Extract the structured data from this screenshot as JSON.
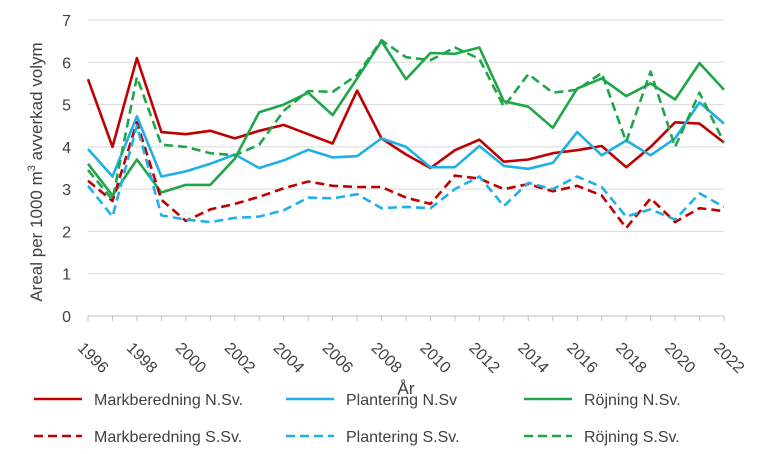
{
  "chart_data": {
    "type": "line",
    "title": "",
    "xlabel": "År",
    "ylabel_main": "Areal per 1000 m",
    "ylabel_sup": "3",
    "ylabel_rest": " avverkad volym",
    "ylim": [
      0,
      7
    ],
    "yticks": [
      0,
      1,
      2,
      3,
      4,
      5,
      6,
      7
    ],
    "xlim": [
      1996,
      2022
    ],
    "x": [
      1996,
      1997,
      1998,
      1999,
      2000,
      2001,
      2002,
      2003,
      2004,
      2005,
      2006,
      2007,
      2008,
      2009,
      2010,
      2011,
      2012,
      2013,
      2014,
      2015,
      2016,
      2017,
      2018,
      2019,
      2020,
      2021,
      2022
    ],
    "xtick_labels": [
      "1996",
      "1998",
      "2000",
      "2002",
      "2004",
      "2006",
      "2008",
      "2010",
      "2012",
      "2014",
      "2016",
      "2018",
      "2020",
      "2022"
    ],
    "legend_position": "bottom",
    "series": [
      {
        "name": "Markberedning N.Sv.",
        "color": "#C00000",
        "dash": "solid",
        "values": [
          5.6,
          4.0,
          6.1,
          4.35,
          4.3,
          4.38,
          4.2,
          4.38,
          4.52,
          4.3,
          4.08,
          5.33,
          4.2,
          3.82,
          3.5,
          3.92,
          4.17,
          3.65,
          3.7,
          3.85,
          3.92,
          4.02,
          3.52,
          4.0,
          4.58,
          4.55,
          4.1
        ]
      },
      {
        "name": "Plantering N.Sv",
        "color": "#1FB0E6",
        "dash": "solid",
        "values": [
          3.95,
          3.3,
          4.72,
          3.3,
          3.42,
          3.6,
          3.82,
          3.5,
          3.68,
          3.93,
          3.75,
          3.78,
          4.2,
          4.0,
          3.52,
          3.52,
          4.02,
          3.55,
          3.48,
          3.62,
          4.35,
          3.8,
          4.15,
          3.8,
          4.2,
          5.05,
          4.55
        ]
      },
      {
        "name": "Röjning N.Sv.",
        "color": "#1FA64A",
        "dash": "solid",
        "values": [
          3.6,
          2.85,
          3.7,
          2.92,
          3.1,
          3.1,
          3.72,
          4.82,
          5.0,
          5.28,
          4.75,
          5.62,
          6.5,
          5.6,
          6.22,
          6.2,
          6.35,
          5.08,
          4.95,
          4.45,
          5.38,
          5.62,
          5.2,
          5.5,
          5.12,
          5.98,
          5.35
        ]
      },
      {
        "name": "Markberedning S.Sv.",
        "color": "#C00000",
        "dash": "dashed",
        "values": [
          3.2,
          2.72,
          4.58,
          2.75,
          2.25,
          2.52,
          2.65,
          2.82,
          3.02,
          3.18,
          3.08,
          3.05,
          3.05,
          2.8,
          2.65,
          3.32,
          3.25,
          3.0,
          3.12,
          2.95,
          3.08,
          2.85,
          2.08,
          2.78,
          2.22,
          2.55,
          2.48
        ]
      },
      {
        "name": "Plantering S.Sv.",
        "color": "#1FB0E6",
        "dash": "dashed",
        "values": [
          3.08,
          2.35,
          4.5,
          2.38,
          2.28,
          2.22,
          2.32,
          2.35,
          2.5,
          2.8,
          2.78,
          2.88,
          2.55,
          2.58,
          2.55,
          3.0,
          3.3,
          2.6,
          3.15,
          3.0,
          3.3,
          3.05,
          2.35,
          2.52,
          2.28,
          2.9,
          2.58
        ]
      },
      {
        "name": "Röjning S.Sv.",
        "color": "#1FA64A",
        "dash": "dashed",
        "values": [
          3.45,
          2.75,
          5.65,
          4.05,
          4.0,
          3.85,
          3.8,
          4.05,
          4.85,
          5.32,
          5.3,
          5.7,
          6.52,
          6.12,
          6.05,
          6.35,
          6.08,
          4.95,
          5.72,
          5.28,
          5.35,
          5.75,
          4.12,
          5.78,
          4.0,
          5.28,
          4.1
        ]
      }
    ]
  }
}
